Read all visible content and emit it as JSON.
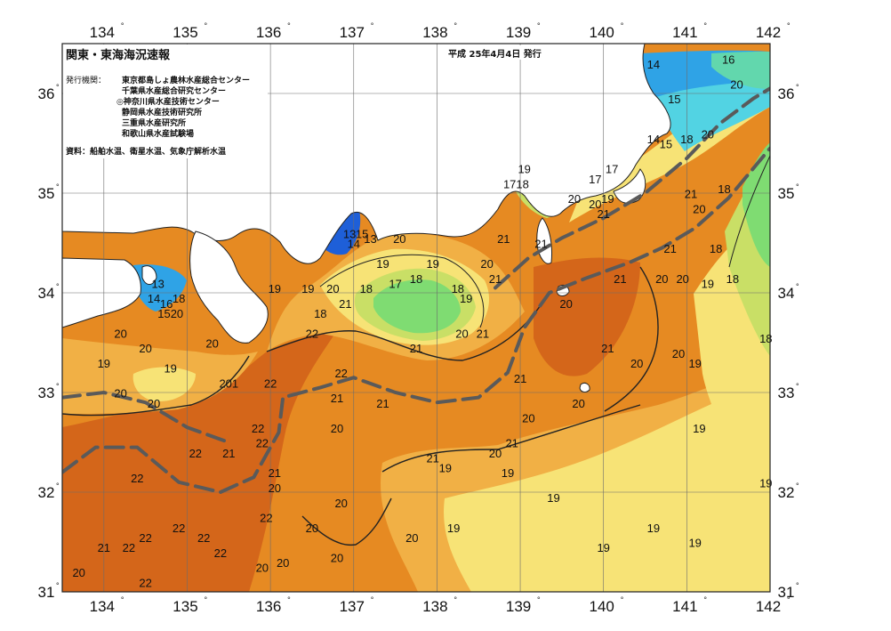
{
  "header": {
    "title": "関東・東海海況速報",
    "date": "平成 25年4月4日 発行",
    "issuers_label": "発行機関：",
    "issuers": [
      "東京都島しょ農林水産総合センター",
      "千葉県水産総合研究センター",
      "◎神奈川県水産技術センター",
      "静岡県水産技術研究所",
      "三重県水産研究所",
      "和歌山県水産試験場"
    ],
    "source": "資料：船舶水温、衛星水温、気象庁解析水温"
  },
  "axes": {
    "lon": [
      {
        "v": 134,
        "label": "134"
      },
      {
        "v": 135,
        "label": "135"
      },
      {
        "v": 136,
        "label": "136"
      },
      {
        "v": 137,
        "label": "137"
      },
      {
        "v": 138,
        "label": "138"
      },
      {
        "v": 139,
        "label": "139"
      },
      {
        "v": 140,
        "label": "140"
      },
      {
        "v": 141,
        "label": "141"
      },
      {
        "v": 142,
        "label": "142"
      }
    ],
    "lat": [
      {
        "v": 31,
        "label": "31"
      },
      {
        "v": 32,
        "label": "32"
      },
      {
        "v": 33,
        "label": "33"
      },
      {
        "v": 34,
        "label": "34"
      },
      {
        "v": 35,
        "label": "35"
      },
      {
        "v": 36,
        "label": "36"
      }
    ],
    "degree_symbol": "°",
    "lon_range": [
      133.5,
      142
    ],
    "lat_range": [
      31,
      36.5
    ]
  },
  "colors": {
    "t13": "#1e5fd8",
    "t14": "#2fa3e6",
    "t15": "#52d3e3",
    "t16": "#62d7ad",
    "t17": "#7fdc72",
    "t18": "#c9df66",
    "t19": "#f7e376",
    "t20": "#f1b045",
    "t21": "#e68a22",
    "t22": "#d4661a",
    "land": "#ffffff",
    "kuroshio": "#5a5a5a",
    "contour": "#222222",
    "grid": "#6c6c6c"
  },
  "kuroshio_path": [
    [
      133.5,
      32.2
    ],
    [
      133.9,
      32.45
    ],
    [
      134.4,
      32.45
    ],
    [
      134.9,
      32.1
    ],
    [
      135.4,
      32.0
    ],
    [
      135.8,
      32.15
    ],
    [
      136.1,
      32.6
    ],
    [
      136.15,
      32.95
    ],
    [
      136.6,
      33.05
    ],
    [
      137.0,
      33.15
    ],
    [
      137.5,
      33.0
    ],
    [
      138.0,
      32.9
    ],
    [
      138.5,
      32.95
    ],
    [
      138.85,
      33.2
    ],
    [
      139.05,
      33.65
    ],
    [
      139.35,
      34.0
    ],
    [
      139.8,
      34.15
    ],
    [
      140.3,
      34.3
    ],
    [
      140.7,
      34.45
    ],
    [
      141.1,
      34.65
    ],
    [
      141.5,
      34.95
    ],
    [
      141.85,
      35.3
    ],
    [
      142.0,
      35.45
    ]
  ],
  "coastal_branch_path": [
    [
      133.5,
      32.95
    ],
    [
      134.0,
      33.0
    ],
    [
      134.5,
      32.9
    ],
    [
      135.0,
      32.65
    ],
    [
      135.5,
      32.5
    ]
  ],
  "inshore_path": [
    [
      138.7,
      34.05
    ],
    [
      139.1,
      34.35
    ],
    [
      139.5,
      34.55
    ],
    [
      140.0,
      34.75
    ],
    [
      140.5,
      35.0
    ],
    [
      141.0,
      35.35
    ],
    [
      141.4,
      35.7
    ],
    [
      141.8,
      35.95
    ],
    [
      142.0,
      36.05
    ]
  ],
  "temperature_labels": [
    {
      "lon": 134.65,
      "lat": 34.05,
      "t": "13"
    },
    {
      "lon": 134.6,
      "lat": 33.9,
      "t": "14"
    },
    {
      "lon": 134.75,
      "lat": 33.85,
      "t": "16"
    },
    {
      "lon": 134.9,
      "lat": 33.9,
      "t": "18"
    },
    {
      "lon": 134.8,
      "lat": 33.75,
      "t": "1520"
    },
    {
      "lon": 136.95,
      "lat": 34.55,
      "t": "13"
    },
    {
      "lon": 137.0,
      "lat": 34.45,
      "t": "14"
    },
    {
      "lon": 137.1,
      "lat": 34.55,
      "t": "15"
    },
    {
      "lon": 137.2,
      "lat": 34.5,
      "t": "13"
    },
    {
      "lon": 137.55,
      "lat": 34.5,
      "t": "20"
    },
    {
      "lon": 134.0,
      "lat": 33.25,
      "t": "19"
    },
    {
      "lon": 134.2,
      "lat": 33.55,
      "t": "20"
    },
    {
      "lon": 134.5,
      "lat": 33.4,
      "t": "20"
    },
    {
      "lon": 134.8,
      "lat": 33.2,
      "t": "19"
    },
    {
      "lon": 135.3,
      "lat": 33.45,
      "t": "20"
    },
    {
      "lon": 134.2,
      "lat": 32.95,
      "t": "20"
    },
    {
      "lon": 134.6,
      "lat": 32.85,
      "t": "20"
    },
    {
      "lon": 135.5,
      "lat": 33.05,
      "t": "201"
    },
    {
      "lon": 136.0,
      "lat": 33.05,
      "t": "22"
    },
    {
      "lon": 136.5,
      "lat": 33.55,
      "t": "22"
    },
    {
      "lon": 136.6,
      "lat": 33.75,
      "t": "18"
    },
    {
      "lon": 136.05,
      "lat": 34.0,
      "t": "19"
    },
    {
      "lon": 136.45,
      "lat": 34.0,
      "t": "19"
    },
    {
      "lon": 136.75,
      "lat": 34.0,
      "t": "20"
    },
    {
      "lon": 136.9,
      "lat": 33.85,
      "t": "21"
    },
    {
      "lon": 137.15,
      "lat": 34.0,
      "t": "18"
    },
    {
      "lon": 137.35,
      "lat": 34.25,
      "t": "19"
    },
    {
      "lon": 137.5,
      "lat": 34.05,
      "t": "17"
    },
    {
      "lon": 137.75,
      "lat": 34.1,
      "t": "18"
    },
    {
      "lon": 137.95,
      "lat": 34.25,
      "t": "19"
    },
    {
      "lon": 138.25,
      "lat": 34.0,
      "t": "18"
    },
    {
      "lon": 138.35,
      "lat": 33.9,
      "t": "19"
    },
    {
      "lon": 138.6,
      "lat": 34.25,
      "t": "20"
    },
    {
      "lon": 138.7,
      "lat": 34.1,
      "t": "21"
    },
    {
      "lon": 138.8,
      "lat": 34.5,
      "t": "21"
    },
    {
      "lon": 139.25,
      "lat": 34.45,
      "t": "21"
    },
    {
      "lon": 138.3,
      "lat": 33.55,
      "t": "20"
    },
    {
      "lon": 138.55,
      "lat": 33.55,
      "t": "21"
    },
    {
      "lon": 137.75,
      "lat": 33.4,
      "t": "21"
    },
    {
      "lon": 136.85,
      "lat": 33.15,
      "t": "22"
    },
    {
      "lon": 135.85,
      "lat": 32.6,
      "t": "22"
    },
    {
      "lon": 135.9,
      "lat": 32.45,
      "t": "22"
    },
    {
      "lon": 135.5,
      "lat": 32.35,
      "t": "21"
    },
    {
      "lon": 135.1,
      "lat": 32.35,
      "t": "22"
    },
    {
      "lon": 134.4,
      "lat": 32.1,
      "t": "22"
    },
    {
      "lon": 136.8,
      "lat": 32.9,
      "t": "21"
    },
    {
      "lon": 137.35,
      "lat": 32.85,
      "t": "21"
    },
    {
      "lon": 136.8,
      "lat": 32.6,
      "t": "20"
    },
    {
      "lon": 136.05,
      "lat": 32.15,
      "t": "21"
    },
    {
      "lon": 136.05,
      "lat": 32.0,
      "t": "20"
    },
    {
      "lon": 135.95,
      "lat": 31.7,
      "t": "22"
    },
    {
      "lon": 134.9,
      "lat": 31.6,
      "t": "22"
    },
    {
      "lon": 134.5,
      "lat": 31.5,
      "t": "22"
    },
    {
      "lon": 135.2,
      "lat": 31.5,
      "t": "22"
    },
    {
      "lon": 134.0,
      "lat": 31.4,
      "t": "21"
    },
    {
      "lon": 134.3,
      "lat": 31.4,
      "t": "22"
    },
    {
      "lon": 135.4,
      "lat": 31.35,
      "t": "22"
    },
    {
      "lon": 133.7,
      "lat": 31.15,
      "t": "20"
    },
    {
      "lon": 134.5,
      "lat": 31.05,
      "t": "22"
    },
    {
      "lon": 135.9,
      "lat": 31.2,
      "t": "20"
    },
    {
      "lon": 136.15,
      "lat": 31.25,
      "t": "20"
    },
    {
      "lon": 136.85,
      "lat": 31.85,
      "t": "20"
    },
    {
      "lon": 136.5,
      "lat": 31.6,
      "t": "20"
    },
    {
      "lon": 136.8,
      "lat": 31.3,
      "t": "20"
    },
    {
      "lon": 137.7,
      "lat": 31.5,
      "t": "20"
    },
    {
      "lon": 138.2,
      "lat": 31.6,
      "t": "19"
    },
    {
      "lon": 137.95,
      "lat": 32.3,
      "t": "21"
    },
    {
      "lon": 138.1,
      "lat": 32.2,
      "t": "19"
    },
    {
      "lon": 138.7,
      "lat": 32.35,
      "t": "20"
    },
    {
      "lon": 138.9,
      "lat": 32.45,
      "t": "21"
    },
    {
      "lon": 138.85,
      "lat": 32.15,
      "t": "19"
    },
    {
      "lon": 139.1,
      "lat": 32.7,
      "t": "20"
    },
    {
      "lon": 139.0,
      "lat": 33.1,
      "t": "21"
    },
    {
      "lon": 139.7,
      "lat": 32.85,
      "t": "20"
    },
    {
      "lon": 139.4,
      "lat": 31.9,
      "t": "19"
    },
    {
      "lon": 140.0,
      "lat": 31.4,
      "t": "19"
    },
    {
      "lon": 140.6,
      "lat": 31.6,
      "t": "19"
    },
    {
      "lon": 141.1,
      "lat": 31.45,
      "t": "19"
    },
    {
      "lon": 141.15,
      "lat": 32.6,
      "t": "19"
    },
    {
      "lon": 141.95,
      "lat": 32.05,
      "t": "19"
    },
    {
      "lon": 140.4,
      "lat": 33.25,
      "t": "20"
    },
    {
      "lon": 140.9,
      "lat": 33.35,
      "t": "20"
    },
    {
      "lon": 141.1,
      "lat": 33.25,
      "t": "19"
    },
    {
      "lon": 140.05,
      "lat": 33.4,
      "t": "21"
    },
    {
      "lon": 140.2,
      "lat": 34.1,
      "t": "21"
    },
    {
      "lon": 140.7,
      "lat": 34.1,
      "t": "20"
    },
    {
      "lon": 140.95,
      "lat": 34.1,
      "t": "20"
    },
    {
      "lon": 141.25,
      "lat": 34.05,
      "t": "19"
    },
    {
      "lon": 141.55,
      "lat": 34.1,
      "t": "18"
    },
    {
      "lon": 141.35,
      "lat": 34.4,
      "t": "18"
    },
    {
      "lon": 140.8,
      "lat": 34.4,
      "t": "21"
    },
    {
      "lon": 141.05,
      "lat": 34.95,
      "t": "21"
    },
    {
      "lon": 141.15,
      "lat": 34.8,
      "t": "20"
    },
    {
      "lon": 141.45,
      "lat": 35.0,
      "t": "18"
    },
    {
      "lon": 139.9,
      "lat": 34.85,
      "t": "20"
    },
    {
      "lon": 140.0,
      "lat": 34.75,
      "t": "21"
    },
    {
      "lon": 140.05,
      "lat": 34.9,
      "t": "19"
    },
    {
      "lon": 139.65,
      "lat": 34.9,
      "t": "20"
    },
    {
      "lon": 139.9,
      "lat": 35.1,
      "t": "17"
    },
    {
      "lon": 140.1,
      "lat": 35.2,
      "t": "17"
    },
    {
      "lon": 139.05,
      "lat": 35.2,
      "t": "19"
    },
    {
      "lon": 138.95,
      "lat": 35.05,
      "t": "1718"
    },
    {
      "lon": 140.6,
      "lat": 35.5,
      "t": "14"
    },
    {
      "lon": 140.75,
      "lat": 35.45,
      "t": "15"
    },
    {
      "lon": 141.0,
      "lat": 35.5,
      "t": "18"
    },
    {
      "lon": 141.25,
      "lat": 35.55,
      "t": "20"
    },
    {
      "lon": 140.85,
      "lat": 35.9,
      "t": "15"
    },
    {
      "lon": 141.6,
      "lat": 36.05,
      "t": "20"
    },
    {
      "lon": 140.6,
      "lat": 36.25,
      "t": "14"
    },
    {
      "lon": 141.5,
      "lat": 36.3,
      "t": "16"
    },
    {
      "lon": 141.95,
      "lat": 33.5,
      "t": "18"
    },
    {
      "lon": 139.55,
      "lat": 33.85,
      "t": "20"
    }
  ]
}
